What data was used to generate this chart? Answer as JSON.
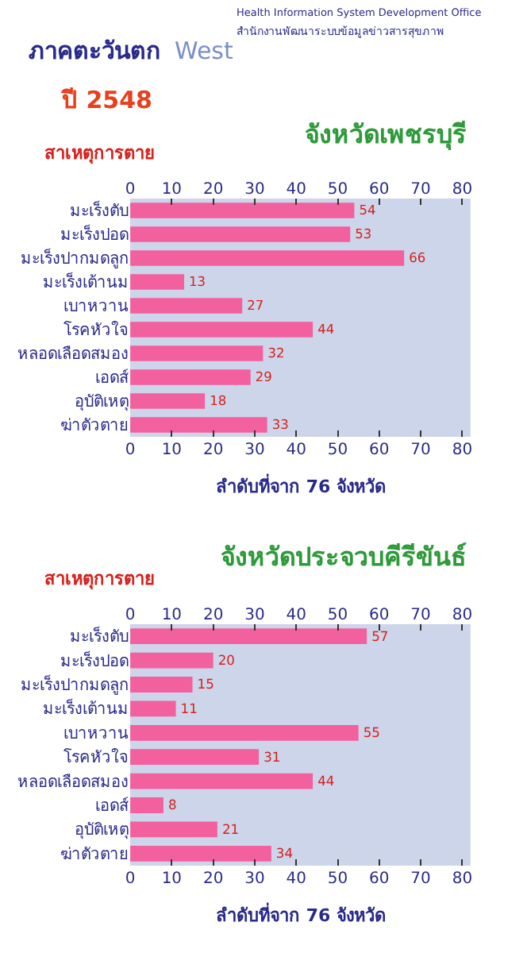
{
  "chart_data": [
    {
      "type": "bar",
      "orientation": "horizontal",
      "title": "จังหวัดเพชรบุรี",
      "subtitle": "ปี 2548",
      "ylabel": "สาเหตุการตาย",
      "xlabel": "ลำดับที่จาก 76 จังหวัด",
      "annotations": [
        "ภาคตะวันตก",
        "West",
        "Health Information System Development Office",
        "สำนักงานพัฒนาระบบข้อมูลข่าวสารสุขภาพ"
      ],
      "categories": [
        "มะเร็งตับ",
        "มะเร็งปอด",
        "มะเร็งปากมดลูก",
        "มะเร็งเต้านม",
        "เบาหวาน",
        "โรคหัวใจ",
        "หลอดเลือดสมอง",
        "เอดส์",
        "อุบัติเหตุ",
        "ฆ่าตัวตาย"
      ],
      "values": [
        54,
        53,
        66,
        13,
        27,
        44,
        32,
        29,
        18,
        33
      ],
      "color": "#f2609e",
      "data_labels": true,
      "xlim": [
        0,
        82
      ],
      "xticks": [
        0,
        10,
        20,
        30,
        40,
        50,
        60,
        70,
        80
      ],
      "x2lim": [
        0,
        82
      ],
      "x2ticks": [
        0,
        10,
        20,
        30,
        40,
        50,
        60,
        70,
        80
      ]
    },
    {
      "type": "bar",
      "orientation": "horizontal",
      "title": "จังหวัดประจวบคีรีขันธ์",
      "ylabel": "สาเหตุการตาย",
      "xlabel": "ลำดับที่จาก 76 จังหวัด",
      "categories": [
        "มะเร็งตับ",
        "มะเร็งปอด",
        "มะเร็งปากมดลูก",
        "มะเร็งเต้านม",
        "เบาหวาน",
        "โรคหัวใจ",
        "หลอดเลือดสมอง",
        "เอดส์",
        "อุบัติเหตุ",
        "ฆ่าตัวตาย"
      ],
      "values": [
        57,
        20,
        15,
        11,
        55,
        31,
        44,
        8,
        21,
        34
      ],
      "color": "#f2609e",
      "data_labels": true,
      "xlim": [
        0,
        82
      ],
      "xticks": [
        0,
        10,
        20,
        30,
        40,
        50,
        60,
        70,
        80
      ],
      "x2lim": [
        0,
        82
      ],
      "x2ticks": [
        0,
        10,
        20,
        30,
        40,
        50,
        60,
        70,
        80
      ]
    }
  ]
}
